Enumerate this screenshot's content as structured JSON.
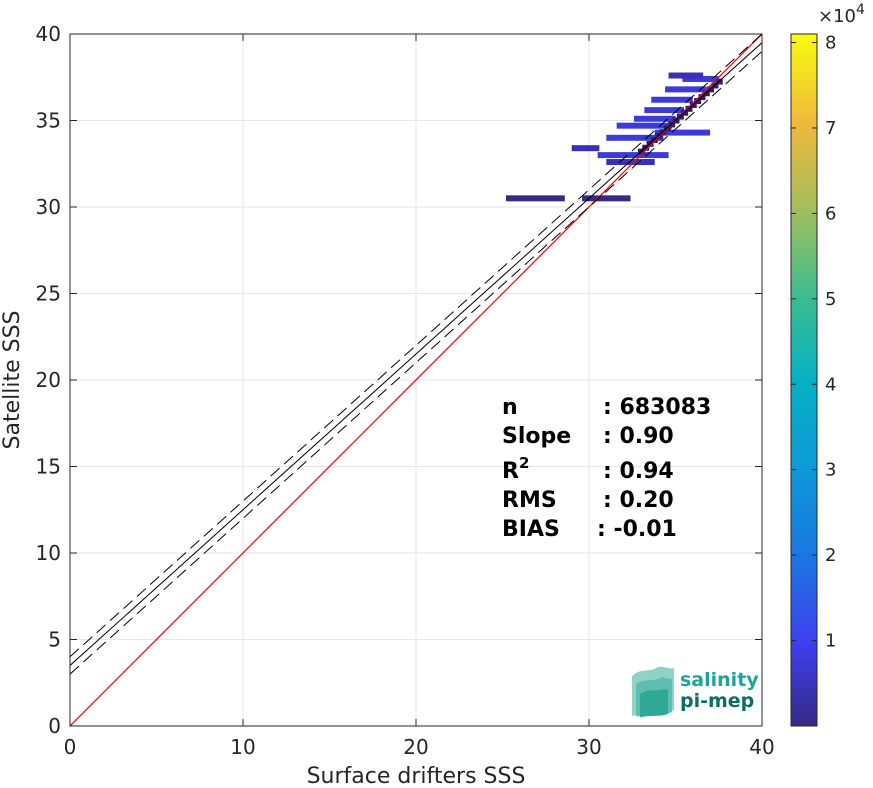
{
  "chart_data": {
    "type": "heatmap",
    "xlabel": "Surface drifters SSS",
    "ylabel": "Satellite SSS",
    "xlim": [
      0,
      40
    ],
    "ylim": [
      0,
      40
    ],
    "xticks": [
      0,
      10,
      20,
      30,
      40
    ],
    "yticks": [
      0,
      5,
      10,
      15,
      20,
      25,
      30,
      35,
      40
    ],
    "grid": true,
    "colorbar": {
      "multiplier": "×10",
      "exponent": "4",
      "ticks": [
        "1",
        "2",
        "3",
        "4",
        "5",
        "6",
        "7",
        "8"
      ],
      "range": [
        0,
        8.1
      ],
      "colormap": "parula"
    },
    "identity_line": {
      "slope": 1,
      "intercept": 0,
      "color": "#ff0000"
    },
    "regression_line": {
      "slope": 0.9,
      "intercept": 3.5,
      "color": "#000000"
    },
    "confidence_band": {
      "offset": 0.5,
      "style": "dashed"
    },
    "density_cells": [
      {
        "x": [
          25.2,
          28.6
        ],
        "y": 30.5,
        "level": 0.02
      },
      {
        "x": [
          29.6,
          32.4
        ],
        "y": 30.5,
        "level": 0.02
      },
      {
        "x": [
          29.0,
          30.6
        ],
        "y": 33.4,
        "level": 0.03
      },
      {
        "x": [
          30.5,
          34.6
        ],
        "y": 33.0,
        "level": 0.05
      },
      {
        "x": [
          31.0,
          33.8
        ],
        "y": 32.6,
        "level": 0.04
      },
      {
        "x": [
          31.0,
          34.3
        ],
        "y": 34.0,
        "level": 0.05
      },
      {
        "x": [
          31.6,
          34.8
        ],
        "y": 34.7,
        "level": 0.06
      },
      {
        "x": [
          32.6,
          35.0
        ],
        "y": 35.1,
        "level": 0.06
      },
      {
        "x": [
          33.2,
          35.5
        ],
        "y": 35.6,
        "level": 0.07
      },
      {
        "x": [
          33.6,
          36.0
        ],
        "y": 36.2,
        "level": 0.07
      },
      {
        "x": [
          34.4,
          36.8
        ],
        "y": 36.8,
        "level": 0.07
      },
      {
        "x": [
          35.4,
          37.5
        ],
        "y": 37.4,
        "level": 0.06
      },
      {
        "x": [
          34.6,
          36.6
        ],
        "y": 37.6,
        "level": 0.04
      },
      {
        "x": [
          33.8,
          37.0
        ],
        "y": 34.3,
        "level": 0.05
      }
    ],
    "stats": [
      {
        "label": "n",
        "value": ": 683083"
      },
      {
        "label": "Slope",
        "value": ": 0.90"
      },
      {
        "label": "R",
        "superscript": "2",
        "value": ": 0.94"
      },
      {
        "label": "RMS",
        "value": ": 0.20"
      },
      {
        "label": "BIAS",
        "value": ": -0.01"
      }
    ]
  },
  "logo": {
    "line1": "salinity",
    "line2": "pi-mep",
    "color": "#1aa69a"
  }
}
